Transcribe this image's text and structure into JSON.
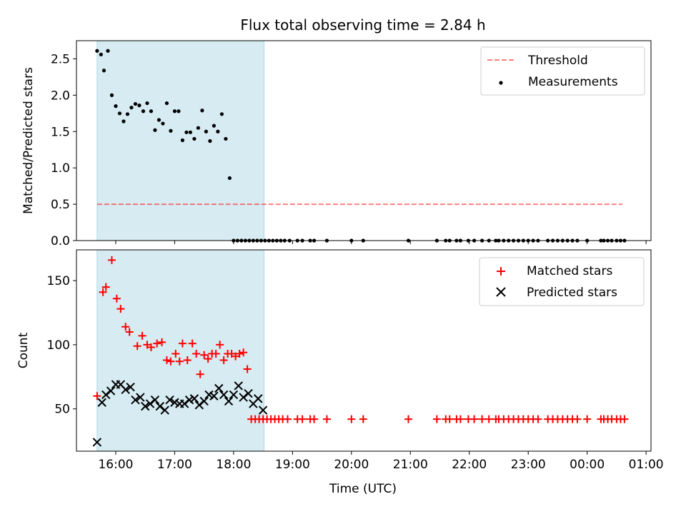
{
  "title": "Flux total observing time = 2.84 h",
  "xlabel": "Time (UTC)",
  "colors": {
    "shade": "#add8e6",
    "threshold": "#ff0000",
    "measurements": "#000000",
    "matched": "#ff0000",
    "predicted": "#000000"
  },
  "chart_data": [
    {
      "type": "scatter",
      "ylabel": "Matched/Predicted stars",
      "ylim": [
        0,
        2.75
      ],
      "yticks": [
        0,
        0.5,
        1.0,
        1.5,
        2.0,
        2.5
      ],
      "ytick_labels": [
        "0.0",
        "0.5",
        "1.0",
        "1.5",
        "2.0",
        "2.5"
      ],
      "xlim": [
        "15:20",
        "01:05"
      ],
      "xticks": [
        "16:00",
        "17:00",
        "18:00",
        "19:00",
        "20:00",
        "21:00",
        "22:00",
        "23:00",
        "00:00",
        "01:00"
      ],
      "shaded_span": [
        "15:41",
        "18:31"
      ],
      "legend_position": "upper right",
      "threshold": {
        "name": "Threshold",
        "y": 0.5,
        "x_range": [
          "15:41",
          "00:36"
        ],
        "style": "dashed"
      },
      "series": [
        {
          "name": "Measurements",
          "marker": "dot",
          "x": [
            "15:41",
            "15:45",
            "15:48",
            "15:52",
            "15:56",
            "16:00",
            "16:04",
            "16:08",
            "16:12",
            "16:16",
            "16:20",
            "16:24",
            "16:28",
            "16:32",
            "16:36",
            "16:40",
            "16:44",
            "16:48",
            "16:52",
            "16:56",
            "17:00",
            "17:04",
            "17:08",
            "17:12",
            "17:16",
            "17:20",
            "17:24",
            "17:28",
            "17:32",
            "17:36",
            "17:40",
            "17:44",
            "17:48",
            "17:52",
            "17:56",
            "18:00",
            "18:04",
            "18:08",
            "18:12",
            "18:16",
            "18:20",
            "18:24",
            "18:28",
            "18:32",
            "18:36",
            "18:40",
            "18:44",
            "18:48",
            "18:52",
            "18:57",
            "19:05",
            "19:10",
            "19:18",
            "19:22",
            "19:35",
            "20:00",
            "20:12",
            "20:58",
            "21:27",
            "21:36",
            "21:40",
            "21:47",
            "21:51",
            "21:59",
            "22:05",
            "22:13",
            "22:20",
            "22:27",
            "22:30",
            "22:35",
            "22:40",
            "22:45",
            "22:50",
            "22:55",
            "23:00",
            "23:05",
            "23:10",
            "23:20",
            "23:25",
            "23:30",
            "23:35",
            "23:40",
            "23:45",
            "23:50",
            "24:00",
            "24:14",
            "24:17",
            "24:21",
            "24:25",
            "24:30",
            "24:34",
            "24:38"
          ],
          "y": [
            2.61,
            2.56,
            2.34,
            2.61,
            2.0,
            1.85,
            1.75,
            1.64,
            1.74,
            1.83,
            1.88,
            1.86,
            1.78,
            1.89,
            1.78,
            1.52,
            1.66,
            1.61,
            1.89,
            1.51,
            1.78,
            1.78,
            1.38,
            1.49,
            1.49,
            1.4,
            1.55,
            1.79,
            1.5,
            1.37,
            1.58,
            1.5,
            1.74,
            1.4,
            0.86,
            0,
            0,
            0,
            0,
            0,
            0,
            0,
            0,
            0,
            0,
            0,
            0,
            0,
            0,
            0,
            0,
            0,
            0,
            0,
            0,
            0,
            0,
            0,
            0,
            0,
            0,
            0,
            0,
            0,
            0,
            0,
            0,
            0,
            0,
            0,
            0,
            0,
            0,
            0,
            0,
            0,
            0,
            0,
            0,
            0,
            0,
            0,
            0,
            0,
            0,
            0,
            0,
            0,
            0,
            0,
            0,
            0
          ]
        }
      ]
    },
    {
      "type": "scatter",
      "ylabel": "Count",
      "ylim": [
        17,
        174
      ],
      "yticks": [
        50,
        100,
        150
      ],
      "ytick_labels": [
        "50",
        "100",
        "150"
      ],
      "xlim": [
        "15:20",
        "01:05"
      ],
      "xticks": [
        "16:00",
        "17:00",
        "18:00",
        "19:00",
        "20:00",
        "21:00",
        "22:00",
        "23:00",
        "00:00",
        "01:00"
      ],
      "xtick_labels": [
        "16:00",
        "17:00",
        "18:00",
        "19:00",
        "20:00",
        "21:00",
        "22:00",
        "23:00",
        "00:00",
        "01:00"
      ],
      "shaded_span": [
        "15:41",
        "18:31"
      ],
      "legend_position": "upper right",
      "series": [
        {
          "name": "Matched stars",
          "marker": "plus",
          "x": [
            "15:41",
            "15:47",
            "15:50",
            "15:56",
            "16:01",
            "16:05",
            "16:10",
            "16:14",
            "16:22",
            "16:27",
            "16:32",
            "16:36",
            "16:42",
            "16:47",
            "16:52",
            "16:56",
            "17:01",
            "17:05",
            "17:08",
            "17:13",
            "17:18",
            "17:22",
            "17:26",
            "17:30",
            "17:34",
            "17:38",
            "17:42",
            "17:46",
            "17:50",
            "17:54",
            "17:58",
            "18:02",
            "18:06",
            "18:10",
            "18:14",
            "18:18",
            "18:22",
            "18:26",
            "18:30",
            "18:34",
            "18:38",
            "18:42",
            "18:46",
            "18:50",
            "18:55",
            "19:05",
            "19:10",
            "19:18",
            "19:22",
            "19:35",
            "20:00",
            "20:12",
            "20:58",
            "21:27",
            "21:36",
            "21:40",
            "21:47",
            "21:51",
            "21:59",
            "22:05",
            "22:13",
            "22:20",
            "22:27",
            "22:30",
            "22:35",
            "22:40",
            "22:45",
            "22:50",
            "22:55",
            "23:00",
            "23:05",
            "23:10",
            "23:20",
            "23:25",
            "23:30",
            "23:35",
            "23:40",
            "23:45",
            "23:50",
            "24:00",
            "24:14",
            "24:17",
            "24:21",
            "24:25",
            "24:30",
            "24:34",
            "24:38"
          ],
          "y": [
            60,
            141,
            145,
            166,
            136,
            128,
            114,
            110,
            99,
            107,
            100,
            98,
            101,
            102,
            88,
            87,
            93,
            87,
            101,
            88,
            101,
            93,
            77,
            92,
            89,
            93,
            93,
            100,
            88,
            93,
            93,
            91,
            93,
            94,
            81,
            42,
            42,
            42,
            42,
            42,
            42,
            42,
            42,
            42,
            42,
            42,
            42,
            42,
            42,
            42,
            42,
            42,
            42,
            42,
            42,
            42,
            42,
            42,
            42,
            42,
            42,
            42,
            42,
            42,
            42,
            42,
            42,
            42,
            42,
            42,
            42,
            42,
            42,
            42,
            42,
            42,
            42,
            42,
            42,
            42,
            42,
            42,
            42,
            42,
            42,
            42,
            42
          ]
        },
        {
          "name": "Predicted stars",
          "marker": "x",
          "x": [
            "15:41",
            "15:46",
            "15:50",
            "15:55",
            "16:00",
            "16:05",
            "16:10",
            "16:15",
            "16:20",
            "16:25",
            "16:30",
            "16:35",
            "16:40",
            "16:45",
            "16:50",
            "16:55",
            "17:00",
            "17:05",
            "17:10",
            "17:15",
            "17:20",
            "17:25",
            "17:30",
            "17:35",
            "17:40",
            "17:45",
            "17:50",
            "17:55",
            "18:00",
            "18:05",
            "18:10",
            "18:15",
            "18:20",
            "18:25",
            "18:30"
          ],
          "y": [
            24,
            55,
            61,
            64,
            69,
            69,
            65,
            67,
            57,
            59,
            52,
            54,
            57,
            52,
            49,
            57,
            55,
            54,
            54,
            57,
            58,
            53,
            56,
            61,
            60,
            66,
            61,
            56,
            61,
            68,
            59,
            62,
            54,
            58,
            49
          ]
        }
      ]
    }
  ]
}
